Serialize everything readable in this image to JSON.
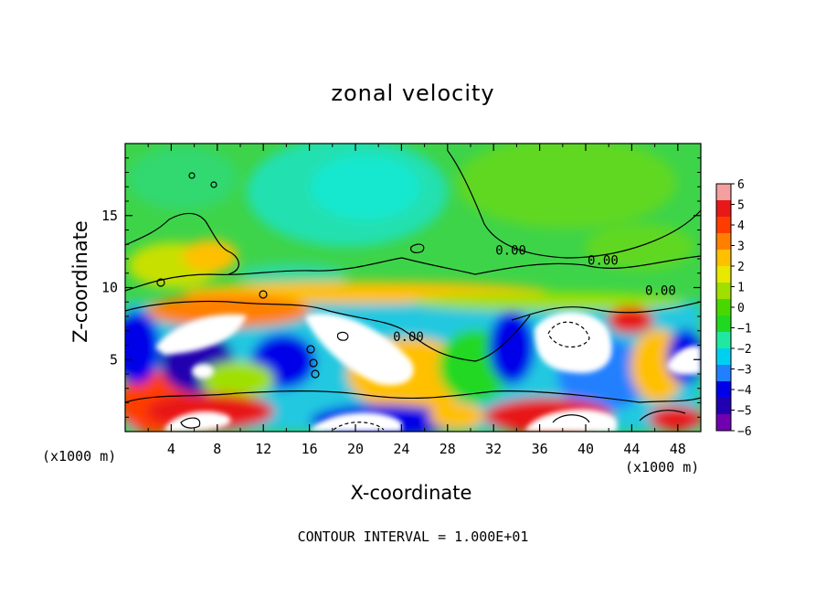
{
  "chart_data": {
    "type": "heatmap",
    "title": "zonal velocity",
    "xlabel": "X-coordinate",
    "ylabel": "Z-coordinate",
    "x_unit_label": "(x1000 m)",
    "x_unit_label_right": "(x1000 m)",
    "xlim": [
      0,
      50
    ],
    "ylim": [
      0,
      20
    ],
    "x_ticks": [
      4,
      8,
      12,
      16,
      20,
      24,
      28,
      32,
      36,
      40,
      44,
      48
    ],
    "y_ticks": [
      5,
      10,
      15
    ],
    "colorbar": {
      "min": -6,
      "max": 6,
      "ticks": [
        6,
        5,
        4,
        3,
        2,
        1,
        0,
        -1,
        -2,
        -3,
        -4,
        -5,
        -6
      ],
      "colors": [
        "#f4a0a0",
        "#e81818",
        "#ff3c00",
        "#ff8000",
        "#ffc000",
        "#e8e800",
        "#a0e000",
        "#48d800",
        "#20d820",
        "#20e8a0",
        "#00d0f0",
        "#2080ff",
        "#0000e8",
        "#2000b0",
        "#7000b0"
      ]
    },
    "contour_labels": [
      {
        "text": "0.00",
        "x": 41.5,
        "y": 11.6
      },
      {
        "text": "0.00",
        "x": 46.5,
        "y": 9.5
      },
      {
        "text": "0.00",
        "x": 24.6,
        "y": 6.3
      },
      {
        "text": "0.00",
        "x": 33.5,
        "y": 12.3
      }
    ],
    "footer": "CONTOUR INTERVAL = 1.000E+01"
  }
}
